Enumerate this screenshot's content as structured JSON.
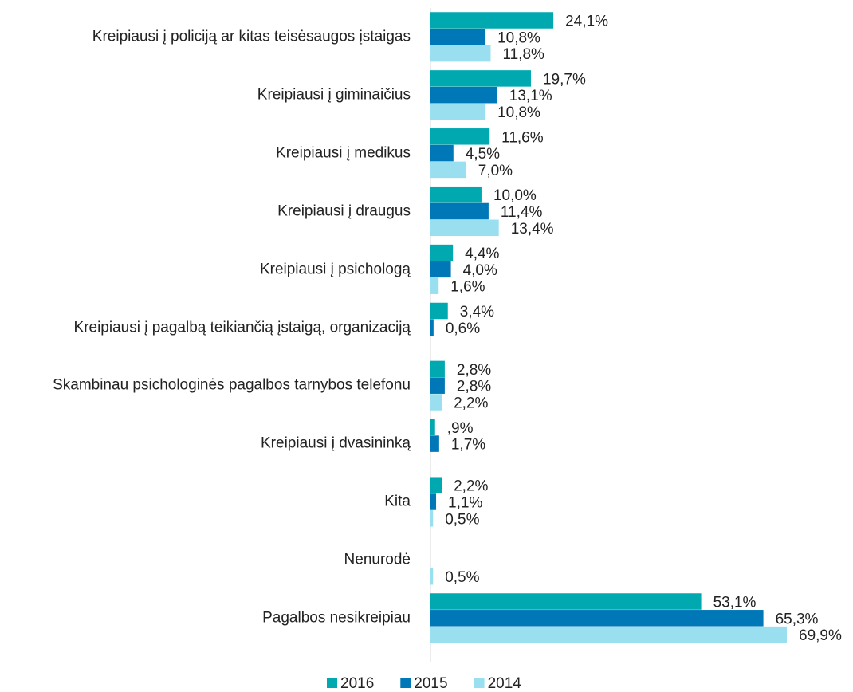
{
  "chart_data": {
    "type": "hbar",
    "categories": [
      "Kreipiausi į policiją ar kitas teisėsaugos įstaigas",
      "Kreipiausi į giminaičius",
      "Kreipiausi į medikus",
      "Kreipiausi į draugus",
      "Kreipiausi į psichologą",
      "Kreipiausi į pagalbą teikiančią įstaigą, organizaciją",
      "Skambinau psichologinės pagalbos tarnybos telefonu",
      "Kreipiausi į dvasininką",
      "Kita",
      "Nenurodė",
      "Pagalbos nesikreipiau"
    ],
    "series": [
      {
        "name": "2016",
        "color": "#00a9b0",
        "values": [
          24.1,
          19.7,
          11.6,
          10.0,
          4.4,
          3.4,
          2.8,
          0.9,
          2.2,
          null,
          53.1
        ],
        "value_labels": [
          "24,1%",
          "19,7%",
          "11,6%",
          "10,0%",
          "4,4%",
          "3,4%",
          "2,8%",
          ",9%",
          "2,2%",
          null,
          "53,1%"
        ]
      },
      {
        "name": "2015",
        "color": "#0077b6",
        "values": [
          10.8,
          13.1,
          4.5,
          11.4,
          4.0,
          0.6,
          2.8,
          1.7,
          1.1,
          null,
          65.3
        ],
        "value_labels": [
          "10,8%",
          "13,1%",
          "4,5%",
          "11,4%",
          "4,0%",
          "0,6%",
          "2,8%",
          "1,7%",
          "1,1%",
          null,
          "65,3%"
        ]
      },
      {
        "name": "2014",
        "color": "#99dff0",
        "values": [
          11.8,
          10.8,
          7.0,
          13.4,
          1.6,
          null,
          2.2,
          null,
          0.5,
          0.5,
          69.9
        ],
        "value_labels": [
          "11,8%",
          "10,8%",
          "7,0%",
          "13,4%",
          "1,6%",
          null,
          "2,2%",
          null,
          "0,5%",
          "0,5%",
          "69,9%"
        ]
      }
    ],
    "xlim": [
      0,
      70
    ],
    "legend": "bottom"
  }
}
